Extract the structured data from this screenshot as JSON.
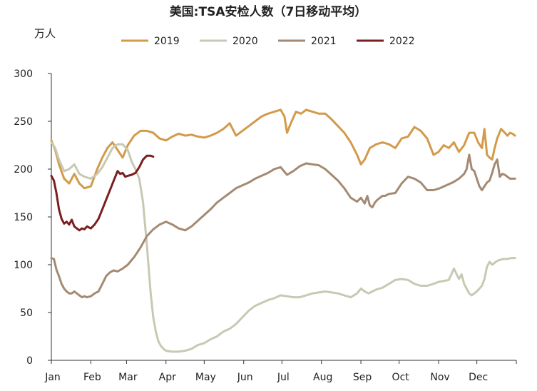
{
  "chart_data": {
    "type": "line",
    "title": "美国:TSA安检人数（7日移动平均）",
    "unit_label": "万人",
    "ylim": [
      0,
      300
    ],
    "yticks": [
      0,
      50,
      100,
      150,
      200,
      250,
      300
    ],
    "xlim": [
      0,
      365
    ],
    "months": [
      "Jan",
      "Feb",
      "Mar",
      "Apr",
      "May",
      "Jun",
      "Jul",
      "Aug",
      "Sep",
      "Oct",
      "Nov",
      "Dec"
    ],
    "month_start_days": [
      0,
      31,
      59,
      90,
      120,
      151,
      181,
      212,
      243,
      273,
      304,
      334
    ],
    "legend_position": "top",
    "grid": false,
    "series": [
      {
        "name": "2019",
        "color": "#D39A4A",
        "x": [
          0,
          3,
          6,
          10,
          14,
          18,
          22,
          26,
          31,
          36,
          40,
          44,
          48,
          52,
          56,
          60,
          65,
          70,
          75,
          80,
          85,
          90,
          95,
          100,
          105,
          110,
          115,
          120,
          125,
          130,
          135,
          140,
          145,
          150,
          155,
          160,
          165,
          170,
          175,
          180,
          183,
          185,
          188,
          192,
          196,
          200,
          205,
          210,
          215,
          220,
          225,
          230,
          235,
          240,
          243,
          246,
          250,
          255,
          260,
          265,
          270,
          275,
          280,
          285,
          290,
          295,
          300,
          304,
          308,
          312,
          316,
          320,
          324,
          328,
          332,
          335,
          338,
          340,
          342,
          344,
          346,
          348,
          350,
          353,
          356,
          358,
          360,
          362,
          364
        ],
        "y": [
          230,
          220,
          205,
          190,
          185,
          195,
          185,
          180,
          182,
          200,
          212,
          222,
          228,
          220,
          212,
          225,
          235,
          240,
          240,
          238,
          232,
          230,
          234,
          237,
          235,
          236,
          234,
          233,
          235,
          238,
          242,
          248,
          235,
          240,
          245,
          250,
          255,
          258,
          260,
          262,
          255,
          238,
          248,
          260,
          258,
          262,
          260,
          258,
          258,
          252,
          245,
          238,
          228,
          215,
          205,
          210,
          222,
          226,
          228,
          226,
          222,
          232,
          234,
          244,
          240,
          232,
          215,
          218,
          225,
          222,
          228,
          218,
          225,
          238,
          238,
          228,
          222,
          242,
          215,
          212,
          210,
          222,
          232,
          242,
          238,
          235,
          238,
          237,
          235
        ]
      },
      {
        "name": "2020",
        "color": "#C7C9B3",
        "x": [
          0,
          3,
          6,
          10,
          14,
          18,
          22,
          26,
          31,
          36,
          40,
          44,
          48,
          52,
          56,
          60,
          63,
          66,
          69,
          72,
          75,
          78,
          80,
          82,
          84,
          86,
          88,
          90,
          95,
          100,
          105,
          110,
          115,
          120,
          125,
          130,
          135,
          140,
          145,
          150,
          155,
          160,
          165,
          170,
          175,
          180,
          185,
          190,
          195,
          200,
          205,
          210,
          215,
          220,
          225,
          230,
          235,
          240,
          243,
          246,
          249,
          252,
          255,
          260,
          265,
          270,
          275,
          280,
          285,
          290,
          295,
          300,
          304,
          308,
          312,
          316,
          320,
          322,
          324,
          326,
          328,
          330,
          332,
          334,
          336,
          338,
          340,
          342,
          344,
          346,
          348,
          350,
          352,
          355,
          358,
          361,
          364
        ],
        "y": [
          228,
          222,
          210,
          198,
          200,
          205,
          195,
          192,
          190,
          195,
          202,
          212,
          222,
          226,
          226,
          220,
          208,
          200,
          190,
          165,
          120,
          70,
          45,
          30,
          20,
          15,
          12,
          10,
          9,
          9,
          10,
          12,
          16,
          18,
          22,
          25,
          30,
          33,
          38,
          45,
          52,
          57,
          60,
          63,
          65,
          68,
          67,
          66,
          66,
          68,
          70,
          71,
          72,
          71,
          70,
          68,
          66,
          70,
          75,
          72,
          70,
          72,
          74,
          76,
          80,
          84,
          85,
          84,
          80,
          78,
          78,
          80,
          82,
          83,
          84,
          96,
          85,
          90,
          80,
          75,
          70,
          68,
          70,
          72,
          75,
          78,
          85,
          98,
          103,
          100,
          102,
          104,
          105,
          106,
          106,
          107,
          107
        ]
      },
      {
        "name": "2021",
        "color": "#A48A72",
        "x": [
          0,
          2,
          4,
          6,
          8,
          10,
          12,
          14,
          16,
          18,
          20,
          22,
          24,
          26,
          28,
          31,
          34,
          37,
          40,
          43,
          46,
          49,
          52,
          56,
          60,
          65,
          70,
          75,
          80,
          85,
          90,
          95,
          100,
          105,
          110,
          115,
          120,
          125,
          130,
          135,
          140,
          145,
          150,
          155,
          160,
          165,
          170,
          175,
          180,
          185,
          190,
          195,
          200,
          205,
          210,
          215,
          220,
          225,
          230,
          235,
          240,
          243,
          246,
          248,
          250,
          252,
          254,
          256,
          258,
          260,
          262,
          265,
          270,
          275,
          280,
          285,
          290,
          295,
          300,
          305,
          310,
          315,
          320,
          324,
          326,
          328,
          330,
          332,
          334,
          336,
          338,
          340,
          342,
          344,
          346,
          348,
          350,
          352,
          354,
          356,
          358,
          360,
          362,
          364
        ],
        "y": [
          107,
          106,
          95,
          88,
          80,
          75,
          72,
          70,
          70,
          72,
          70,
          68,
          66,
          67,
          66,
          67,
          70,
          72,
          80,
          88,
          92,
          94,
          93,
          96,
          100,
          108,
          118,
          130,
          137,
          142,
          145,
          142,
          138,
          136,
          140,
          146,
          152,
          158,
          165,
          170,
          175,
          180,
          183,
          186,
          190,
          193,
          196,
          200,
          202,
          194,
          198,
          203,
          206,
          205,
          204,
          200,
          194,
          188,
          180,
          170,
          166,
          170,
          164,
          172,
          162,
          160,
          165,
          168,
          170,
          172,
          172,
          174,
          175,
          185,
          192,
          190,
          186,
          178,
          178,
          180,
          183,
          186,
          190,
          195,
          200,
          215,
          200,
          198,
          190,
          182,
          178,
          182,
          186,
          188,
          196,
          205,
          210,
          192,
          195,
          194,
          192,
          190,
          190,
          190
        ]
      },
      {
        "name": "2022",
        "color": "#7A1F1F",
        "x": [
          0,
          2,
          4,
          6,
          8,
          10,
          12,
          14,
          16,
          18,
          20,
          22,
          24,
          26,
          28,
          31,
          34,
          37,
          40,
          43,
          46,
          49,
          52,
          54,
          56,
          58,
          60,
          63,
          66,
          69,
          72,
          75,
          78,
          80
        ],
        "y": [
          193,
          188,
          175,
          158,
          148,
          143,
          145,
          142,
          147,
          140,
          138,
          136,
          138,
          137,
          140,
          138,
          142,
          148,
          158,
          168,
          178,
          188,
          198,
          195,
          196,
          192,
          193,
          194,
          196,
          202,
          210,
          214,
          214,
          213
        ]
      }
    ]
  }
}
